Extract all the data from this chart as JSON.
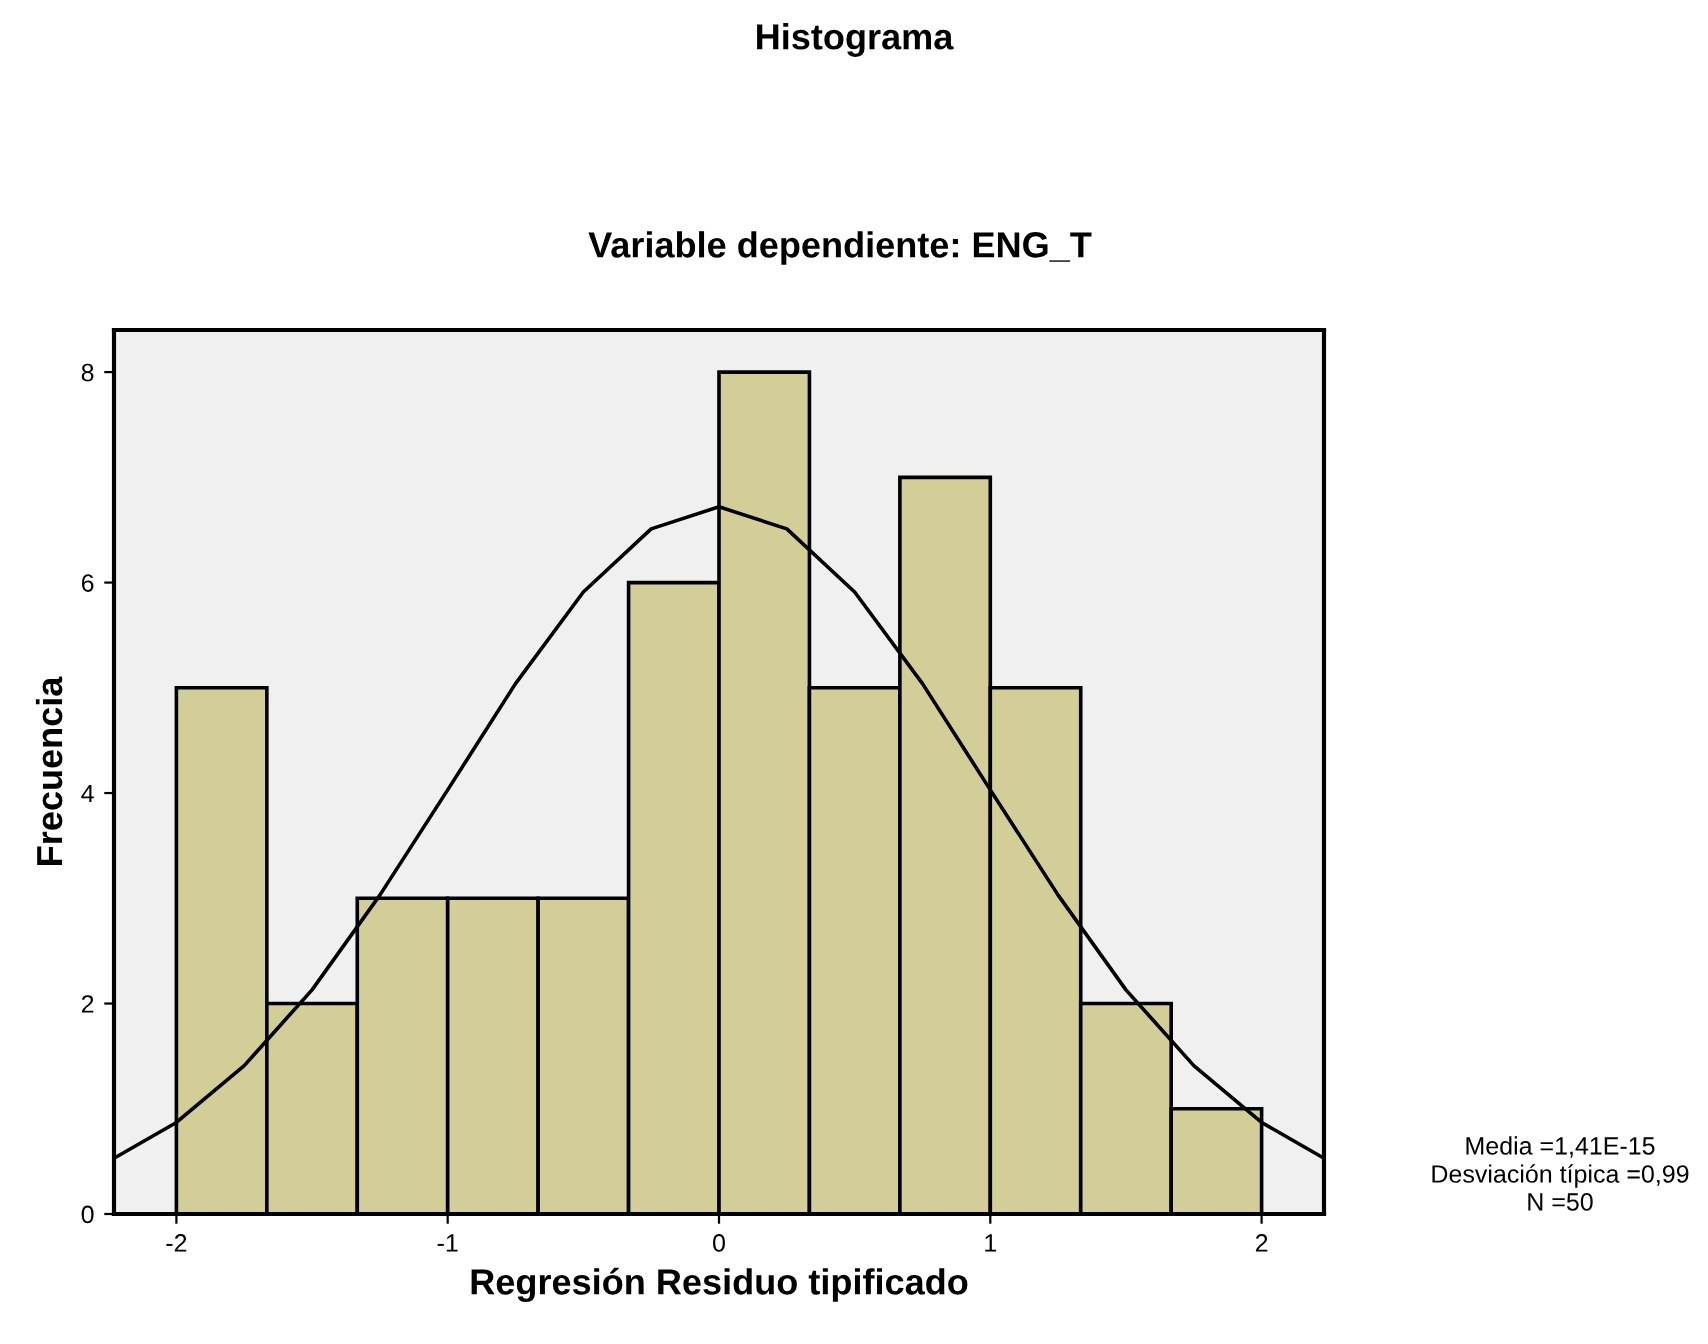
{
  "chart_data": {
    "type": "histogram",
    "title": "Histograma",
    "subtitle": "Variable dependiente: ENG_T",
    "xlabel": "Regresión Residuo tipificado",
    "ylabel": "Frecuencia",
    "bins": [
      -2,
      -1.6667,
      -1.3333,
      -1,
      -0.6667,
      -0.3333,
      0,
      0.3333,
      0.6667,
      1,
      1.3333,
      1.6667,
      2
    ],
    "values": [
      5,
      2,
      3,
      3,
      3,
      6,
      8,
      5,
      7,
      5,
      2,
      1
    ],
    "color": "#d3ce98",
    "series": [
      {
        "type": "line",
        "color": "#000000",
        "x": [
          -2.23,
          -2,
          -1.75,
          -1.5,
          -1.25,
          -1,
          -0.75,
          -0.5,
          -0.25,
          0,
          0.25,
          0.5,
          0.75,
          1,
          1.25,
          1.5,
          1.75,
          2,
          2.23
        ],
        "values": [
          0.53,
          0.87,
          1.41,
          2.13,
          3.03,
          4.03,
          5.04,
          5.91,
          6.51,
          6.72,
          6.51,
          5.91,
          5.04,
          4.03,
          3.03,
          2.13,
          1.41,
          0.87,
          0.53
        ]
      }
    ],
    "xlim": [
      -2.23,
      2.23
    ],
    "ylim": [
      0,
      8.4
    ],
    "xticks": [
      -2,
      -1,
      0,
      1,
      2
    ],
    "yticks": [
      0,
      2,
      4,
      6,
      8
    ],
    "grid": false,
    "legend": false,
    "annotations": [
      "Media =1,41E-15",
      "Desviación típica =0,99",
      "N =50"
    ]
  }
}
